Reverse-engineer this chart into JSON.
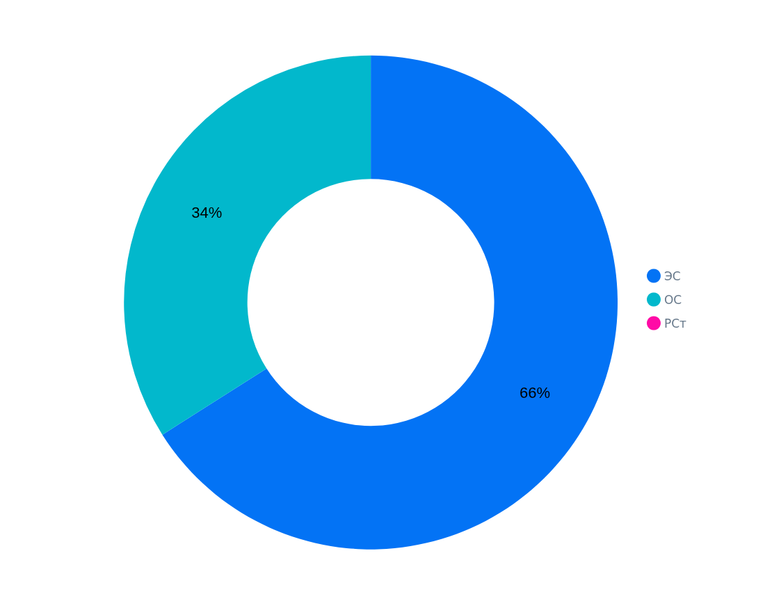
{
  "chart_data": {
    "type": "donut",
    "categories": [
      "ЭС",
      "ОС",
      "РСт"
    ],
    "values": [
      66,
      34,
      0
    ],
    "colors": [
      "#0373f5",
      "#02b8cc",
      "#ff0aa6"
    ],
    "value_labels": [
      "66%",
      "34%",
      null
    ],
    "legend": "right"
  }
}
